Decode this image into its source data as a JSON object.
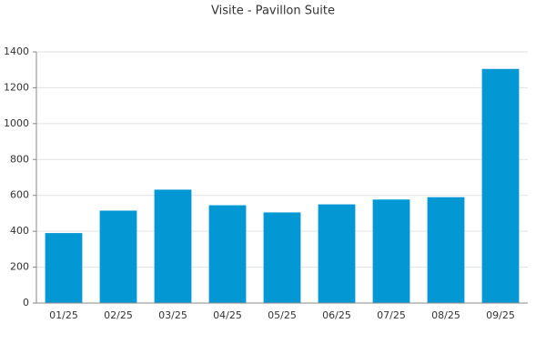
{
  "chart_data": {
    "type": "bar",
    "title": "Visite - Pavillon Suite",
    "categories": [
      "01/25",
      "02/25",
      "03/25",
      "04/25",
      "05/25",
      "06/25",
      "07/25",
      "08/25",
      "09/25"
    ],
    "values": [
      390,
      515,
      632,
      545,
      505,
      550,
      577,
      590,
      1305
    ],
    "color": "#0398d4",
    "ylim": [
      0,
      1400
    ],
    "yticks": [
      0,
      200,
      400,
      600,
      800,
      1000,
      1200,
      1400
    ],
    "grid": true
  }
}
